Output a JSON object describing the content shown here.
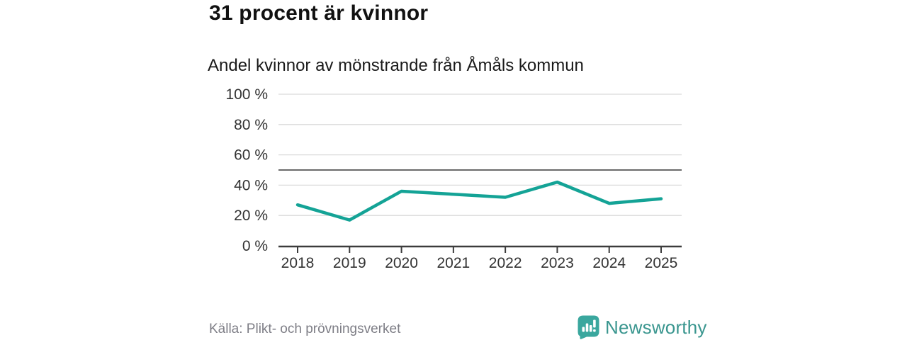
{
  "header": {
    "title": "31 procent är kvinnor",
    "subtitle": "Andel kvinnor av mönstrande från Åmåls kommun"
  },
  "chart_data": {
    "type": "line",
    "categories": [
      "2018",
      "2019",
      "2020",
      "2021",
      "2022",
      "2023",
      "2024",
      "2025"
    ],
    "series": [
      {
        "name": "Andel kvinnor",
        "values": [
          27,
          17,
          36,
          34,
          32,
          42,
          28,
          31
        ]
      }
    ],
    "title": "31 procent är kvinnor",
    "subtitle": "Andel kvinnor av mönstrande från Åmåls kommun",
    "xlabel": "",
    "ylabel": "",
    "ylim": [
      0,
      100
    ],
    "yticks": [
      0,
      20,
      40,
      60,
      80,
      100
    ],
    "ytick_labels": [
      "0 %",
      "20 %",
      "40 %",
      "60 %",
      "80 %",
      "100 %"
    ],
    "reference_line": 50,
    "grid": true,
    "legend_position": "none",
    "line_color": "#14a396",
    "grid_color": "#d9d9d9",
    "reference_line_color": "#6b6b6b",
    "axis_color": "#3c3c3c",
    "tick_label_color": "#333333"
  },
  "footer": {
    "source": "Källa: Plikt- och prövningsverket",
    "brand": "Newsworthy",
    "brand_color": "#3a968f",
    "logo_color": "#3aa79e",
    "logo_icon": "newsworthy-barchart-speech-bubble-icon"
  }
}
